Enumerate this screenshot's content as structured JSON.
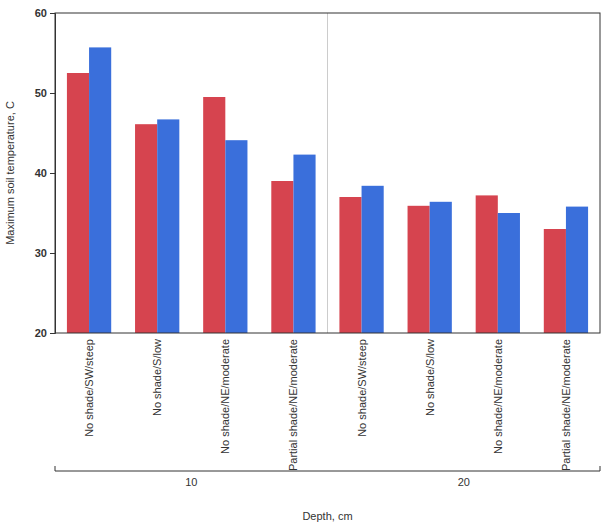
{
  "chart_data": {
    "type": "bar",
    "x_label": "Depth, cm",
    "y_label": "Maximum soil temperature, C",
    "groups": [
      {
        "label": "10",
        "categories": [
          "No shade/SW/steep",
          "No shade/S/low",
          "No shade/NE/moderate",
          "Partial shade/NE/moderate"
        ]
      },
      {
        "label": "20",
        "categories": [
          "No shade/SW/steep",
          "No shade/S/low",
          "No shade/NE/moderate",
          "Partial shade/NE/moderate"
        ]
      }
    ],
    "series": [
      {
        "color": "#d6444f",
        "values": [
          52.5,
          46.1,
          49.5,
          39.0,
          37.0,
          35.9,
          37.2,
          33.0
        ]
      },
      {
        "color": "#3a6fdb",
        "values": [
          55.7,
          46.7,
          44.1,
          42.3,
          38.4,
          36.4,
          35.0,
          35.8
        ]
      }
    ],
    "ylim": [
      20,
      60
    ],
    "yticks": [
      20,
      30,
      40,
      50,
      60
    ],
    "grid": false
  }
}
